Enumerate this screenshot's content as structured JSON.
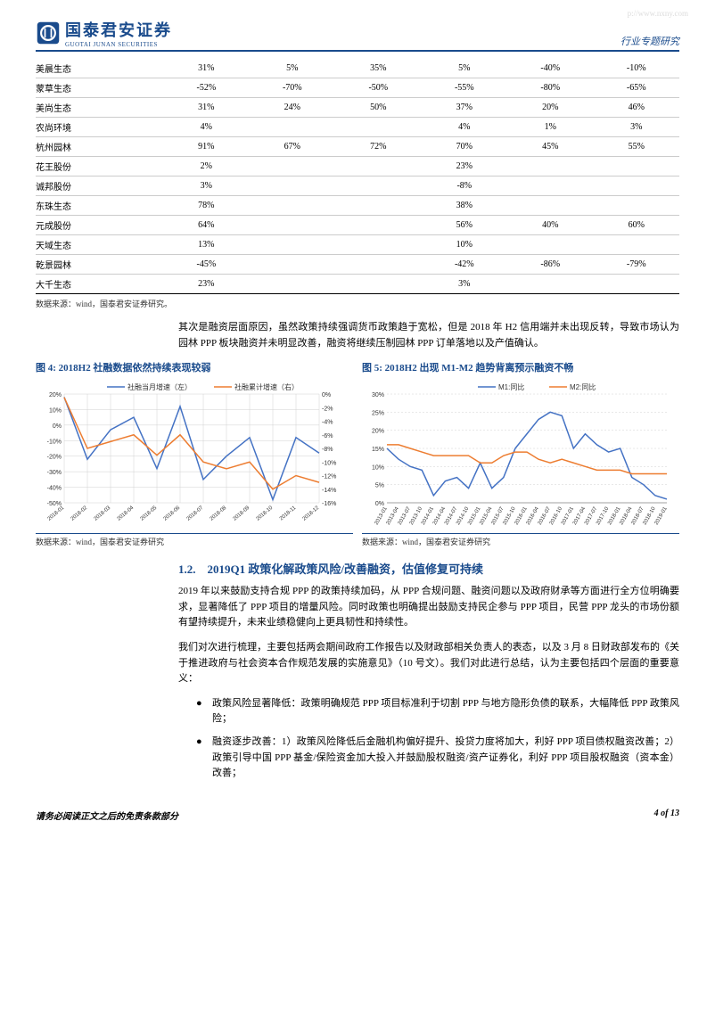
{
  "watermark": "p://www.nxny.com",
  "header": {
    "logo_cn": "国泰君安证券",
    "logo_en": "GUOTAI JUNAN SECURITIES",
    "right": "行业专题研究"
  },
  "table": {
    "rows": [
      [
        "美晨生态",
        "31%",
        "5%",
        "35%",
        "5%",
        "-40%",
        "-10%"
      ],
      [
        "蒙草生态",
        "-52%",
        "-70%",
        "-50%",
        "-55%",
        "-80%",
        "-65%"
      ],
      [
        "美尚生态",
        "31%",
        "24%",
        "50%",
        "37%",
        "20%",
        "46%"
      ],
      [
        "农尚环境",
        "4%",
        "",
        "",
        "4%",
        "1%",
        "3%"
      ],
      [
        "杭州园林",
        "91%",
        "67%",
        "72%",
        "70%",
        "45%",
        "55%"
      ],
      [
        "花王股份",
        "2%",
        "",
        "",
        "23%",
        "",
        ""
      ],
      [
        "诚邦股份",
        "3%",
        "",
        "",
        "-8%",
        "",
        ""
      ],
      [
        "东珠生态",
        "78%",
        "",
        "",
        "38%",
        "",
        ""
      ],
      [
        "元成股份",
        "64%",
        "",
        "",
        "56%",
        "40%",
        "60%"
      ],
      [
        "天域生态",
        "13%",
        "",
        "",
        "10%",
        "",
        ""
      ],
      [
        "乾景园林",
        "-45%",
        "",
        "",
        "-42%",
        "-86%",
        "-79%"
      ],
      [
        "大千生态",
        "23%",
        "",
        "",
        "3%",
        "",
        ""
      ]
    ]
  },
  "source_text": "数据来源：wind，国泰君安证券研究。",
  "para1": "其次是融资层面原因，虽然政策持续强调货币政策趋于宽松，但是 2018 年 H2 信用端并未出现反转，导致市场认为园林 PPP 板块融资并未明显改善，融资将继续压制园林 PPP 订单落地以及产值确认。",
  "chart4": {
    "title": "图 4: 2018H2 社融数据依然持续表现较弱",
    "legend1": "社融当月增速（左）",
    "legend2": "社融累计增速（右）",
    "x_labels": [
      "2018-01",
      "2018-02",
      "2018-03",
      "2018-04",
      "2018-05",
      "2018-06",
      "2018-07",
      "2018-08",
      "2018-09",
      "2018-10",
      "2018-11",
      "2018-12"
    ],
    "y_left": [
      "-50%",
      "-40%",
      "-30%",
      "-20%",
      "-10%",
      "0%",
      "10%",
      "20%"
    ],
    "y_right": [
      "-16%",
      "-14%",
      "-12%",
      "-10%",
      "-8%",
      "-6%",
      "-4%",
      "-2%",
      "0%"
    ],
    "blue_data": [
      18,
      -22,
      -3,
      5,
      -28,
      12,
      -35,
      -20,
      -8,
      -48,
      -8,
      -18
    ],
    "orange_data": [
      -0.5,
      -8,
      -7,
      -6,
      -9,
      -6,
      -10,
      -11,
      -10,
      -14,
      -12,
      -13
    ],
    "colors": {
      "blue": "#4472c4",
      "orange": "#ed7d31",
      "grid": "#d0d0d0",
      "axis": "#a0a0a0"
    }
  },
  "chart5": {
    "title": "图 5: 2018H2 出现 M1-M2 趋势背离预示融资不畅",
    "legend1": "M1:同比",
    "legend2": "M2:同比",
    "x_labels": [
      "2013-01",
      "2013-04",
      "2013-07",
      "2013-10",
      "2014-01",
      "2014-04",
      "2014-07",
      "2014-10",
      "2015-01",
      "2015-04",
      "2015-07",
      "2015-10",
      "2016-01",
      "2016-04",
      "2016-07",
      "2016-10",
      "2017-01",
      "2017-04",
      "2017-07",
      "2017-10",
      "2018-01",
      "2018-04",
      "2018-07",
      "2018-10",
      "2019-01"
    ],
    "y_labels": [
      "0%",
      "5%",
      "10%",
      "15%",
      "20%",
      "25%",
      "30%"
    ],
    "blue_data": [
      15,
      12,
      10,
      9,
      2,
      6,
      7,
      4,
      11,
      4,
      7,
      15,
      19,
      23,
      25,
      24,
      15,
      19,
      16,
      14,
      15,
      7,
      5,
      2,
      1
    ],
    "orange_data": [
      16,
      16,
      15,
      14,
      13,
      13,
      13,
      13,
      11,
      11,
      13,
      14,
      14,
      12,
      11,
      12,
      11,
      10,
      9,
      9,
      9,
      8,
      8,
      8,
      8
    ],
    "colors": {
      "blue": "#4472c4",
      "orange": "#ed7d31",
      "grid": "#d0d0d0",
      "axis": "#a0a0a0"
    }
  },
  "chart_source": "数据来源：wind，国泰君安证券研究",
  "section_1_2": "1.2.　2019Q1 政策化解政策风险/改善融资，估值修复可持续",
  "para2": "2019 年以来鼓励支持合规 PPP 的政策持续加码，从 PPP 合规问题、融资问题以及政府财承等方面进行全方位明确要求，显著降低了 PPP 项目的增量风险。同时政策也明确提出鼓励支持民企参与 PPP 项目，民营 PPP 龙头的市场份额有望持续提升，未来业绩稳健向上更具韧性和持续性。",
  "para3": "我们对次进行梳理，主要包括两会期间政府工作报告以及财政部相关负责人的表态，以及 3 月 8 日财政部发布的《关于推进政府与社会资本合作规范发展的实施意见》（10 号文）。我们对此进行总结，认为主要包括四个层面的重要意义：",
  "bullet1": "政策风险显著降低：政策明确规范 PPP 项目标准利于切割 PPP 与地方隐形负债的联系，大幅降低 PPP 政策风险；",
  "bullet2": "融资逐步改善：1）政策风险降低后金融机构偏好提升、投贷力度将加大，利好 PPP 项目债权融资改善；2）政策引导中国 PPP 基金/保险资金加大投入并鼓励股权融资/资产证券化，利好 PPP 项目股权融资（资本金）改善；",
  "footer": {
    "left": "请务必阅读正文之后的免责条款部分",
    "right": "4 of 13"
  }
}
